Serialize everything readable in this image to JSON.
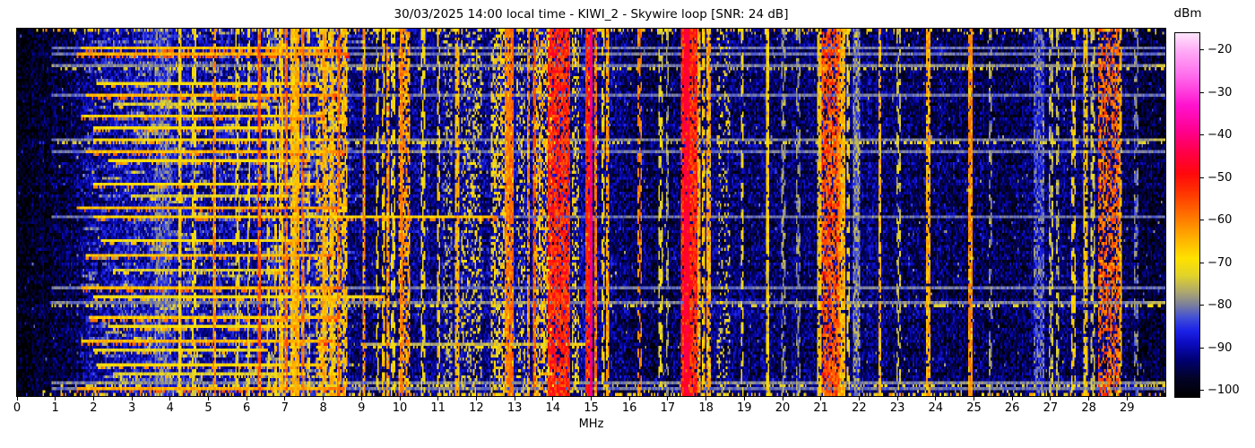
{
  "chart_data": {
    "type": "heatmap",
    "subtype": "radio-spectrum-waterfall",
    "title": "30/03/2025 14:00 local time - KIWI_2 - Skywire loop [SNR: 24 dB]",
    "xlabel": "MHz",
    "x_range": [
      0,
      30
    ],
    "x_ticks": [
      "0",
      "1",
      "2",
      "3",
      "4",
      "5",
      "6",
      "7",
      "8",
      "9",
      "10",
      "11",
      "12",
      "13",
      "14",
      "15",
      "16",
      "17",
      "18",
      "19",
      "20",
      "21",
      "22",
      "23",
      "24",
      "25",
      "26",
      "27",
      "28",
      "29"
    ],
    "y_ticks": [],
    "colorbar": {
      "label": "dBm",
      "tick_labels": [
        "−20",
        "−30",
        "−40",
        "−50",
        "−60",
        "−70",
        "−80",
        "−90",
        "−100"
      ],
      "tick_values": [
        -20,
        -30,
        -40,
        -50,
        -60,
        -70,
        -80,
        -90,
        -100
      ],
      "vmax": -16,
      "vmin": -101.5
    },
    "colormap_stops": [
      [
        -101.5,
        [
          0,
          0,
          0
        ]
      ],
      [
        -97,
        [
          3,
          3,
          42
        ]
      ],
      [
        -93,
        [
          0,
          0,
          112
        ]
      ],
      [
        -89,
        [
          12,
          12,
          192
        ]
      ],
      [
        -86,
        [
          28,
          34,
          232
        ]
      ],
      [
        -83,
        [
          64,
          78,
          214
        ]
      ],
      [
        -80,
        [
          122,
          126,
          158
        ]
      ],
      [
        -77,
        [
          172,
          166,
          112
        ]
      ],
      [
        -73,
        [
          226,
          211,
          42
        ]
      ],
      [
        -69,
        [
          255,
          226,
          0
        ]
      ],
      [
        -64,
        [
          255,
          174,
          0
        ]
      ],
      [
        -59,
        [
          255,
          116,
          0
        ]
      ],
      [
        -54,
        [
          255,
          58,
          0
        ]
      ],
      [
        -49,
        [
          255,
          8,
          12
        ]
      ],
      [
        -44,
        [
          255,
          0,
          72
        ]
      ],
      [
        -39,
        [
          255,
          0,
          142
        ]
      ],
      [
        -33,
        [
          255,
          18,
          206
        ]
      ],
      [
        -26,
        [
          255,
          108,
          236
        ]
      ],
      [
        -20,
        [
          255,
          172,
          246
        ]
      ],
      [
        -16,
        [
          255,
          228,
          252
        ]
      ]
    ],
    "rng_seed": 20250330,
    "noise_jitter": 13,
    "noise_spike": {
      "prob": 0.018,
      "min": 6,
      "max": 14
    },
    "noise_bursts": {
      "f1": 1.6,
      "f2": 8.6,
      "prob": 0.025,
      "min_len": 3,
      "max_len": 15,
      "boost_min": 4,
      "boost_max": 12
    },
    "noise_floor_dbm": [
      [
        0.0,
        -100
      ],
      [
        0.4,
        -99
      ],
      [
        0.8,
        -97.5
      ],
      [
        1.2,
        -96
      ],
      [
        1.6,
        -94
      ],
      [
        2.0,
        -92
      ],
      [
        2.5,
        -90.5
      ],
      [
        3.0,
        -89.5
      ],
      [
        3.5,
        -88.5
      ],
      [
        4.0,
        -89
      ],
      [
        4.6,
        -89.5
      ],
      [
        5.2,
        -90.5
      ],
      [
        5.8,
        -90
      ],
      [
        6.4,
        -89
      ],
      [
        7.0,
        -88.5
      ],
      [
        7.6,
        -88.5
      ],
      [
        8.2,
        -89.5
      ],
      [
        8.8,
        -93
      ],
      [
        9.2,
        -93.5
      ],
      [
        9.8,
        -92.5
      ],
      [
        10.4,
        -92
      ],
      [
        11.0,
        -92
      ],
      [
        11.6,
        -91.5
      ],
      [
        12.2,
        -91.5
      ],
      [
        12.8,
        -91
      ],
      [
        13.4,
        -90.5
      ],
      [
        14.0,
        -90
      ],
      [
        14.7,
        -91
      ],
      [
        15.3,
        -92
      ],
      [
        15.8,
        -94
      ],
      [
        16.1,
        -94.5
      ],
      [
        16.6,
        -95
      ],
      [
        17.2,
        -94
      ],
      [
        17.9,
        -92.5
      ],
      [
        18.4,
        -93
      ],
      [
        19.0,
        -93.5
      ],
      [
        19.6,
        -93.5
      ],
      [
        20.2,
        -94
      ],
      [
        20.8,
        -93
      ],
      [
        21.4,
        -92
      ],
      [
        22.0,
        -93
      ],
      [
        22.6,
        -93.5
      ],
      [
        23.2,
        -94
      ],
      [
        23.8,
        -94
      ],
      [
        24.4,
        -94
      ],
      [
        25.0,
        -94.5
      ],
      [
        25.6,
        -95
      ],
      [
        26.2,
        -94.5
      ],
      [
        26.8,
        -94
      ],
      [
        27.4,
        -93.5
      ],
      [
        28.0,
        -93
      ],
      [
        28.6,
        -92.5
      ],
      [
        29.1,
        -95
      ],
      [
        29.5,
        -96.5
      ],
      [
        30.0,
        -97
      ]
    ],
    "vertical_bands": [
      {
        "f1": 3.6,
        "f2": 4.0,
        "level": -83,
        "density": 0.9,
        "style": "fuzzy"
      },
      {
        "f1": 4.23,
        "f2": 4.28,
        "level": -69,
        "density": 0.8,
        "style": "line"
      },
      {
        "f1": 4.6,
        "f2": 4.66,
        "level": -71,
        "density": 0.6,
        "style": "dash"
      },
      {
        "f1": 5.14,
        "f2": 5.19,
        "level": -60,
        "density": 0.7,
        "style": "line"
      },
      {
        "f1": 5.74,
        "f2": 5.79,
        "level": -71,
        "density": 0.5,
        "style": "dash"
      },
      {
        "f1": 6.03,
        "f2": 6.08,
        "level": -70,
        "density": 0.6,
        "style": "dash"
      },
      {
        "f1": 6.29,
        "f2": 6.33,
        "level": -56,
        "density": 0.75,
        "style": "line"
      },
      {
        "f1": 6.54,
        "f2": 6.59,
        "level": -70,
        "density": 0.5,
        "style": "dash"
      },
      {
        "f1": 6.72,
        "f2": 6.77,
        "level": -68,
        "density": 0.6,
        "style": "dash"
      },
      {
        "f1": 6.86,
        "f2": 6.92,
        "level": -66,
        "density": 0.65,
        "style": "line"
      },
      {
        "f1": 7.0,
        "f2": 7.06,
        "level": -58,
        "density": 0.7,
        "style": "line"
      },
      {
        "f1": 7.18,
        "f2": 7.25,
        "level": -66,
        "density": 0.8,
        "style": "line"
      },
      {
        "f1": 7.3,
        "f2": 7.38,
        "level": -64,
        "density": 0.85,
        "style": "line"
      },
      {
        "f1": 7.44,
        "f2": 7.5,
        "level": -58,
        "density": 0.7,
        "style": "line"
      },
      {
        "f1": 7.58,
        "f2": 7.64,
        "level": -68,
        "density": 0.6,
        "style": "dash"
      },
      {
        "f1": 7.82,
        "f2": 8.62,
        "level": -68,
        "density": 0.45,
        "style": "speck"
      },
      {
        "f1": 8.0,
        "f2": 8.06,
        "level": -64,
        "density": 0.7,
        "style": "line"
      },
      {
        "f1": 8.2,
        "f2": 8.26,
        "level": -66,
        "density": 0.6,
        "style": "line"
      },
      {
        "f1": 8.38,
        "f2": 8.43,
        "level": -57,
        "density": 0.65,
        "style": "line"
      },
      {
        "f1": 8.55,
        "f2": 8.6,
        "level": -66,
        "density": 0.5,
        "style": "dash"
      },
      {
        "f1": 9.03,
        "f2": 9.08,
        "level": -60,
        "density": 0.6,
        "style": "line"
      },
      {
        "f1": 9.38,
        "f2": 9.43,
        "level": -70,
        "density": 0.45,
        "style": "dash"
      },
      {
        "f1": 9.55,
        "f2": 9.6,
        "level": -67,
        "density": 0.5,
        "style": "dash"
      },
      {
        "f1": 9.65,
        "f2": 9.7,
        "level": -61,
        "density": 0.6,
        "style": "line"
      },
      {
        "f1": 9.8,
        "f2": 9.85,
        "level": -70,
        "density": 0.4,
        "style": "dash"
      },
      {
        "f1": 9.98,
        "f2": 10.26,
        "level": -63,
        "density": 0.6,
        "style": "speck"
      },
      {
        "f1": 10.0,
        "f2": 10.05,
        "level": -60,
        "density": 0.75,
        "style": "line"
      },
      {
        "f1": 10.58,
        "f2": 10.64,
        "level": -70,
        "density": 0.5,
        "style": "dash"
      },
      {
        "f1": 10.98,
        "f2": 11.04,
        "level": -68,
        "density": 0.6,
        "style": "dash"
      },
      {
        "f1": 11.17,
        "f2": 11.33,
        "level": -76,
        "density": 0.35,
        "style": "speck"
      },
      {
        "f1": 11.48,
        "f2": 11.54,
        "level": -64,
        "density": 0.6,
        "style": "line"
      },
      {
        "f1": 11.64,
        "f2": 12.12,
        "level": -72,
        "density": 0.3,
        "style": "speck"
      },
      {
        "f1": 12.4,
        "f2": 12.72,
        "level": -70,
        "density": 0.45,
        "style": "speck"
      },
      {
        "f1": 12.77,
        "f2": 12.84,
        "level": -60,
        "density": 0.8,
        "style": "line"
      },
      {
        "f1": 12.89,
        "f2": 12.96,
        "level": -58,
        "density": 0.8,
        "style": "line"
      },
      {
        "f1": 13.05,
        "f2": 13.25,
        "level": -72,
        "density": 0.3,
        "style": "speck"
      },
      {
        "f1": 13.33,
        "f2": 13.39,
        "level": -60,
        "density": 0.6,
        "style": "line"
      },
      {
        "f1": 13.48,
        "f2": 13.54,
        "level": -56,
        "density": 0.65,
        "style": "line"
      },
      {
        "f1": 13.58,
        "f2": 13.95,
        "level": -67,
        "density": 0.5,
        "style": "speck"
      },
      {
        "f1": 13.9,
        "f2": 14.45,
        "level": -52,
        "density": 0.8,
        "style": "speck"
      },
      {
        "f1": 14.5,
        "f2": 14.68,
        "level": -70,
        "density": 0.4,
        "style": "speck"
      },
      {
        "f1": 14.88,
        "f2": 14.93,
        "level": -52,
        "density": 0.8,
        "style": "line"
      },
      {
        "f1": 14.98,
        "f2": 15.03,
        "level": -41,
        "density": 0.97,
        "style": "line"
      },
      {
        "f1": 15.1,
        "f2": 15.15,
        "level": -58,
        "density": 0.7,
        "style": "line"
      },
      {
        "f1": 15.28,
        "f2": 15.34,
        "level": -68,
        "density": 0.5,
        "style": "dash"
      },
      {
        "f1": 15.4,
        "f2": 15.46,
        "level": -62,
        "density": 0.6,
        "style": "line"
      },
      {
        "f1": 16.23,
        "f2": 16.3,
        "level": -60,
        "density": 0.45,
        "style": "dash"
      },
      {
        "f1": 16.78,
        "f2": 16.84,
        "level": -72,
        "density": 0.35,
        "style": "dash"
      },
      {
        "f1": 16.97,
        "f2": 17.03,
        "level": -77,
        "density": 0.4,
        "style": "dash"
      },
      {
        "f1": 17.35,
        "f2": 17.75,
        "level": -52,
        "density": 0.85,
        "style": "speck"
      },
      {
        "f1": 17.45,
        "f2": 17.55,
        "level": -46,
        "density": 0.9,
        "style": "line"
      },
      {
        "f1": 17.78,
        "f2": 17.84,
        "level": -62,
        "density": 0.6,
        "style": "line"
      },
      {
        "f1": 17.9,
        "f2": 17.96,
        "level": -66,
        "density": 0.55,
        "style": "dash"
      },
      {
        "f1": 18.02,
        "f2": 18.1,
        "level": -62,
        "density": 0.6,
        "style": "line"
      },
      {
        "f1": 18.3,
        "f2": 18.62,
        "level": -72,
        "density": 0.2,
        "style": "speck"
      },
      {
        "f1": 18.92,
        "f2": 18.98,
        "level": -70,
        "density": 0.35,
        "style": "dash"
      },
      {
        "f1": 19.58,
        "f2": 19.62,
        "level": -68,
        "density": 0.85,
        "style": "line"
      },
      {
        "f1": 19.98,
        "f2": 20.04,
        "level": -78,
        "density": 0.3,
        "style": "dash"
      },
      {
        "f1": 20.38,
        "f2": 20.44,
        "level": -78,
        "density": 0.3,
        "style": "dash"
      },
      {
        "f1": 20.92,
        "f2": 20.98,
        "level": -66,
        "density": 0.6,
        "style": "line"
      },
      {
        "f1": 21.02,
        "f2": 21.45,
        "level": -56,
        "density": 0.7,
        "style": "speck"
      },
      {
        "f1": 21.45,
        "f2": 21.52,
        "level": -62,
        "density": 0.75,
        "style": "line"
      },
      {
        "f1": 21.56,
        "f2": 21.63,
        "level": -64,
        "density": 0.7,
        "style": "line"
      },
      {
        "f1": 21.68,
        "f2": 21.74,
        "level": -68,
        "density": 0.5,
        "style": "dash"
      },
      {
        "f1": 21.86,
        "f2": 22.02,
        "level": -80,
        "density": 0.5,
        "style": "fuzzy"
      },
      {
        "f1": 22.5,
        "f2": 22.55,
        "level": -64,
        "density": 0.55,
        "style": "line"
      },
      {
        "f1": 23.0,
        "f2": 23.06,
        "level": -74,
        "density": 0.3,
        "style": "dash"
      },
      {
        "f1": 23.78,
        "f2": 23.83,
        "level": -63,
        "density": 0.7,
        "style": "line"
      },
      {
        "f1": 24.88,
        "f2": 24.95,
        "level": -61,
        "density": 0.8,
        "style": "line"
      },
      {
        "f1": 25.4,
        "f2": 25.46,
        "level": -78,
        "density": 0.3,
        "style": "dash"
      },
      {
        "f1": 26.6,
        "f2": 26.8,
        "level": -84,
        "density": 0.5,
        "style": "fuzzy"
      },
      {
        "f1": 26.98,
        "f2": 27.06,
        "level": -76,
        "density": 0.5,
        "style": "dash"
      },
      {
        "f1": 27.15,
        "f2": 27.22,
        "level": -76,
        "density": 0.45,
        "style": "dash"
      },
      {
        "f1": 27.55,
        "f2": 27.62,
        "level": -68,
        "density": 0.35,
        "style": "dash"
      },
      {
        "f1": 27.88,
        "f2": 27.94,
        "level": -66,
        "density": 0.55,
        "style": "line"
      },
      {
        "f1": 28.08,
        "f2": 28.14,
        "level": -74,
        "density": 0.45,
        "style": "dash"
      },
      {
        "f1": 28.28,
        "f2": 28.78,
        "level": -58,
        "density": 0.55,
        "style": "speck"
      },
      {
        "f1": 28.8,
        "f2": 28.86,
        "level": -63,
        "density": 0.6,
        "style": "line"
      },
      {
        "f1": 29.2,
        "f2": 29.26,
        "level": -80,
        "density": 0.3,
        "style": "dash"
      }
    ],
    "horizontal_streaks": [
      {
        "y": 0.05,
        "f1": 1.7,
        "f2": 8.4,
        "level": -66,
        "full": true
      },
      {
        "y": 0.068,
        "f1": 1.6,
        "f2": 8.6,
        "level": -64,
        "full": true
      },
      {
        "y": 0.095,
        "f1": 0.9,
        "f2": 30,
        "level": -80,
        "full": false
      },
      {
        "y": 0.145,
        "f1": 2.1,
        "f2": 7.8,
        "level": -70,
        "full": false
      },
      {
        "y": 0.175,
        "f1": 1.8,
        "f2": 8.3,
        "level": -65,
        "full": true
      },
      {
        "y": 0.205,
        "f1": 2.5,
        "f2": 6.5,
        "level": -74,
        "full": false
      },
      {
        "y": 0.235,
        "f1": 1.7,
        "f2": 8.0,
        "level": -67,
        "full": false
      },
      {
        "y": 0.268,
        "f1": 2.0,
        "f2": 7.2,
        "level": -70,
        "full": false
      },
      {
        "y": 0.3,
        "f1": 0.9,
        "f2": 30,
        "level": -80,
        "full": false
      },
      {
        "y": 0.302,
        "f1": 2.0,
        "f2": 8.2,
        "level": -69,
        "full": false
      },
      {
        "y": 0.335,
        "f1": 1.8,
        "f2": 8.5,
        "level": -65,
        "full": true
      },
      {
        "y": 0.36,
        "f1": 2.4,
        "f2": 7.6,
        "level": -70,
        "full": false
      },
      {
        "y": 0.42,
        "f1": 2.0,
        "f2": 8.0,
        "level": -69,
        "full": false
      },
      {
        "y": 0.455,
        "f1": 3.0,
        "f2": 7.0,
        "level": -74,
        "full": false
      },
      {
        "y": 0.49,
        "f1": 1.6,
        "f2": 8.3,
        "level": -65,
        "full": false
      },
      {
        "y": 0.512,
        "f1": 2.0,
        "f2": 12.5,
        "level": -68,
        "full": true
      },
      {
        "y": 0.575,
        "f1": 2.2,
        "f2": 7.4,
        "level": -71,
        "full": false
      },
      {
        "y": 0.615,
        "f1": 1.8,
        "f2": 8.2,
        "level": -66,
        "full": false
      },
      {
        "y": 0.655,
        "f1": 2.5,
        "f2": 7.0,
        "level": -74,
        "full": false
      },
      {
        "y": 0.705,
        "f1": 1.7,
        "f2": 8.4,
        "level": -65,
        "full": true
      },
      {
        "y": 0.73,
        "f1": 2.0,
        "f2": 9.5,
        "level": -71,
        "full": false
      },
      {
        "y": 0.748,
        "f1": 0.9,
        "f2": 30,
        "level": -80,
        "full": false
      },
      {
        "y": 0.785,
        "f1": 1.9,
        "f2": 8.3,
        "level": -67,
        "full": false
      },
      {
        "y": 0.815,
        "f1": 2.4,
        "f2": 7.2,
        "level": -71,
        "full": false
      },
      {
        "y": 0.855,
        "f1": 1.7,
        "f2": 8.2,
        "level": -65,
        "full": false
      },
      {
        "y": 0.858,
        "f1": 9.0,
        "f2": 15.0,
        "level": -76,
        "full": false
      },
      {
        "y": 0.878,
        "f1": 2.0,
        "f2": 6.5,
        "level": -72,
        "full": false
      },
      {
        "y": 0.915,
        "f1": 2.1,
        "f2": 8.0,
        "level": -69,
        "full": false
      },
      {
        "y": 0.945,
        "f1": 2.5,
        "f2": 7.5,
        "level": -73,
        "full": false
      },
      {
        "y": 0.97,
        "f1": 0.9,
        "f2": 30,
        "level": -80,
        "full": false
      },
      {
        "y": 0.985,
        "f1": 1.6,
        "f2": 8.5,
        "level": -64,
        "full": true
      }
    ],
    "edge_rows": [
      {
        "row": 0,
        "density": 0.3,
        "level": -68
      },
      {
        "row": 1,
        "density": 0.1,
        "level": -72
      },
      {
        "row": -1,
        "density": 0.3,
        "level": -68
      },
      {
        "row": -2,
        "density": 0.08,
        "level": -74
      }
    ]
  }
}
